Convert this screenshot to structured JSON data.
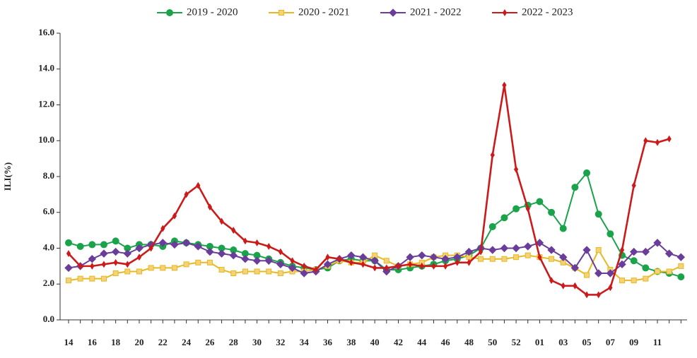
{
  "chart_data": {
    "type": "line",
    "y_label": "ILI(%)",
    "categories": [
      "14",
      null,
      "16",
      null,
      "18",
      null,
      "20",
      null,
      "22",
      null,
      "24",
      null,
      "26",
      null,
      "28",
      null,
      "30",
      null,
      "32",
      null,
      "34",
      null,
      "36",
      null,
      "38",
      null,
      "40",
      null,
      "42",
      null,
      "44",
      null,
      "46",
      null,
      "48",
      null,
      "50",
      null,
      "52",
      null,
      "01",
      null,
      "03",
      null,
      "05",
      null,
      "07",
      null,
      "09",
      null,
      "11",
      null,
      null
    ],
    "ylim": [
      0,
      16
    ],
    "yticks": [
      {
        "value": 0,
        "label": "0.0"
      },
      {
        "value": 2,
        "label": "2.0"
      },
      {
        "value": 4,
        "label": "4.0"
      },
      {
        "value": 6,
        "label": "6.0"
      },
      {
        "value": 8,
        "label": "8.0"
      },
      {
        "value": 10,
        "label": "10.0"
      },
      {
        "value": 12,
        "label": "12.0"
      },
      {
        "value": 14,
        "label": "14.0"
      },
      {
        "value": 16,
        "label": "16.0"
      }
    ],
    "legend_position": "top",
    "series": [
      {
        "name": "2019 - 2020",
        "color": "#1aa34a",
        "marker": "circle",
        "values": [
          4.3,
          4.1,
          4.2,
          4.2,
          4.4,
          4.0,
          4.2,
          4.2,
          4.1,
          4.4,
          4.3,
          4.2,
          4.1,
          4.0,
          3.9,
          3.7,
          3.6,
          3.4,
          3.2,
          3.0,
          2.9,
          2.8,
          2.9,
          3.3,
          3.4,
          3.3,
          3.3,
          2.8,
          2.8,
          2.9,
          3.0,
          3.1,
          3.3,
          3.4,
          3.6,
          4.0,
          5.2,
          5.7,
          6.2,
          6.4,
          6.6,
          6.0,
          5.1,
          7.4,
          8.2,
          5.9,
          4.8,
          3.6,
          3.3,
          2.9,
          2.7,
          2.6,
          2.4
        ]
      },
      {
        "name": "2020 - 2021",
        "color": "#e8b820",
        "marker": "square",
        "values": [
          2.2,
          2.3,
          2.3,
          2.3,
          2.6,
          2.7,
          2.7,
          2.9,
          2.9,
          2.9,
          3.1,
          3.2,
          3.2,
          2.8,
          2.6,
          2.7,
          2.7,
          2.7,
          2.6,
          2.7,
          2.7,
          2.8,
          3.0,
          3.3,
          3.2,
          3.2,
          3.6,
          3.3,
          3.0,
          3.1,
          3.2,
          3.5,
          3.6,
          3.6,
          3.5,
          3.4,
          3.4,
          3.4,
          3.5,
          3.6,
          3.5,
          3.4,
          3.2,
          2.9,
          2.5,
          3.9,
          2.8,
          2.2,
          2.2,
          2.3,
          2.7,
          2.7,
          3.0
        ]
      },
      {
        "name": "2021 - 2022",
        "color": "#6a3d9a",
        "marker": "diamond",
        "values": [
          2.9,
          3.0,
          3.4,
          3.7,
          3.8,
          3.7,
          4.0,
          4.2,
          4.3,
          4.2,
          4.3,
          4.1,
          3.8,
          3.7,
          3.6,
          3.4,
          3.3,
          3.3,
          3.1,
          2.9,
          2.6,
          2.7,
          3.1,
          3.4,
          3.6,
          3.5,
          3.3,
          2.7,
          3.0,
          3.5,
          3.6,
          3.5,
          3.4,
          3.5,
          3.8,
          4.0,
          3.9,
          4.0,
          4.0,
          4.1,
          4.3,
          3.9,
          3.5,
          2.9,
          3.9,
          2.6,
          2.6,
          3.1,
          3.8,
          3.8,
          4.3,
          3.7,
          3.5
        ]
      },
      {
        "name": "2022 - 2023",
        "color": "#cc1a1a",
        "marker": "star",
        "values": [
          3.7,
          3.0,
          3.0,
          3.1,
          3.2,
          3.1,
          3.5,
          4.0,
          5.1,
          5.8,
          7.0,
          7.5,
          6.3,
          5.5,
          5.0,
          4.4,
          4.3,
          4.1,
          3.8,
          3.3,
          3.0,
          2.8,
          3.5,
          3.4,
          3.2,
          3.1,
          2.9,
          2.9,
          3.0,
          3.1,
          3.0,
          3.0,
          3.0,
          3.2,
          3.2,
          3.8,
          9.2,
          13.1,
          8.4,
          6.2,
          3.5,
          2.2,
          1.9,
          1.9,
          1.4,
          1.4,
          1.8,
          3.9,
          7.5,
          10.0,
          9.9,
          10.1,
          null
        ]
      }
    ]
  }
}
